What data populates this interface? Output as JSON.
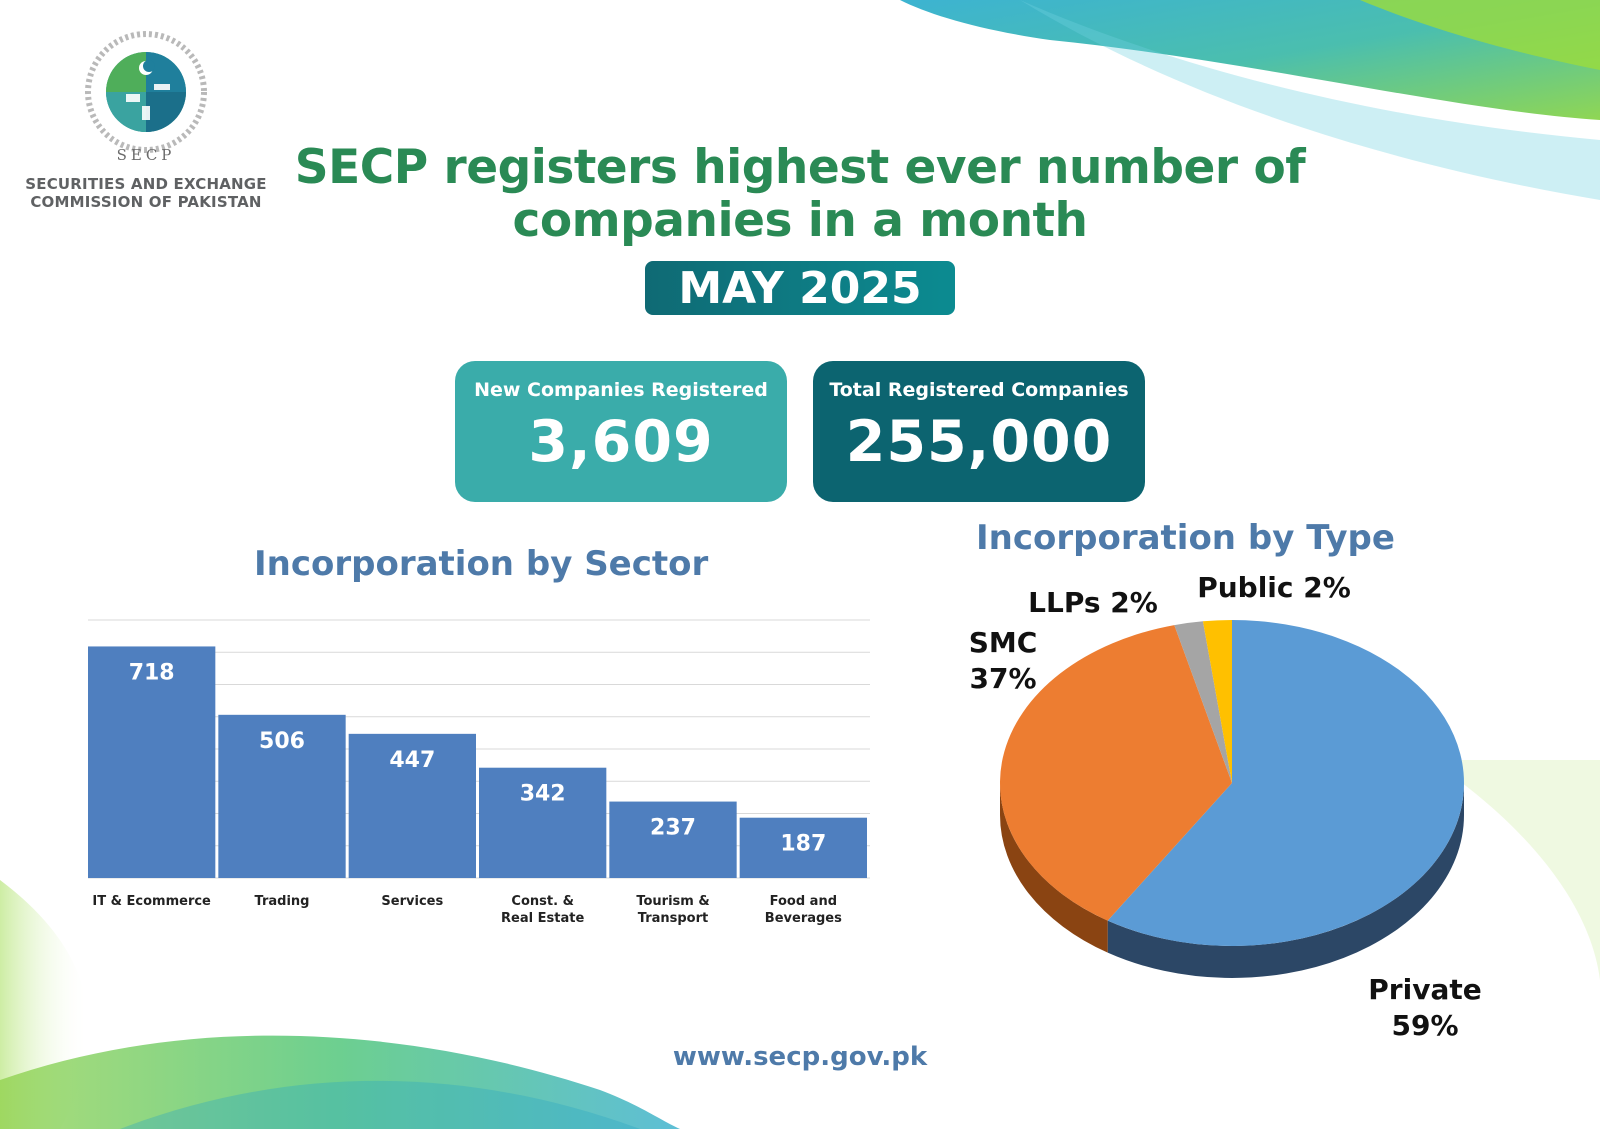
{
  "organization": {
    "abbreviation": "SECP",
    "name_line_1": "SECURITIES AND EXCHANGE",
    "name_line_2": "COMMISSION OF PAKISTAN"
  },
  "headline": {
    "line_1": "SECP registers highest ever number of",
    "line_2": "companies in a month"
  },
  "period": "MAY 2025",
  "stats": {
    "new_companies": {
      "label": "New Companies Registered",
      "value": "3,609"
    },
    "total_companies": {
      "label": "Total Registered Companies",
      "value": "255,000"
    }
  },
  "colors": {
    "headline_green": "#2a8a55",
    "title_blue": "#4e7aa9",
    "card_teal_light": "#3aacaa",
    "card_teal_dark": "#0c6470",
    "bar_blue": "#4f7fbf",
    "pie_private": "#5b9bd5",
    "pie_smc": "#ed7d31",
    "pie_llps": "#a5a5a5",
    "pie_public": "#ffc000"
  },
  "chart_data": [
    {
      "type": "bar",
      "title": "Incorporation by Sector",
      "categories": [
        "IT & Ecommerce",
        "Trading",
        "Services",
        "Const. & Real Estate",
        "Tourism & Transport",
        "Food and Beverages"
      ],
      "category_lines": [
        [
          "IT & Ecommerce"
        ],
        [
          "Trading"
        ],
        [
          "Services"
        ],
        [
          "Const. &",
          "Real Estate"
        ],
        [
          "Tourism &",
          "Transport"
        ],
        [
          "Food and",
          "Beverages"
        ]
      ],
      "values": [
        718,
        506,
        447,
        342,
        237,
        187
      ],
      "data_labels": [
        "718",
        "506",
        "447",
        "342",
        "237",
        "187"
      ],
      "ylim": [
        0,
        800
      ],
      "grid": true,
      "legend": "none"
    },
    {
      "type": "pie",
      "title": "Incorporation by Type",
      "style": "3d",
      "slices": [
        {
          "label": "Private",
          "value": 59,
          "display": "59%"
        },
        {
          "label": "SMC",
          "value": 37,
          "display": "37%"
        },
        {
          "label": "LLPs",
          "value": 2,
          "display": "2%"
        },
        {
          "label": "Public",
          "value": 2,
          "display": "2%"
        }
      ],
      "legend": "none"
    }
  ],
  "footer": {
    "website": "www.secp.gov.pk"
  }
}
